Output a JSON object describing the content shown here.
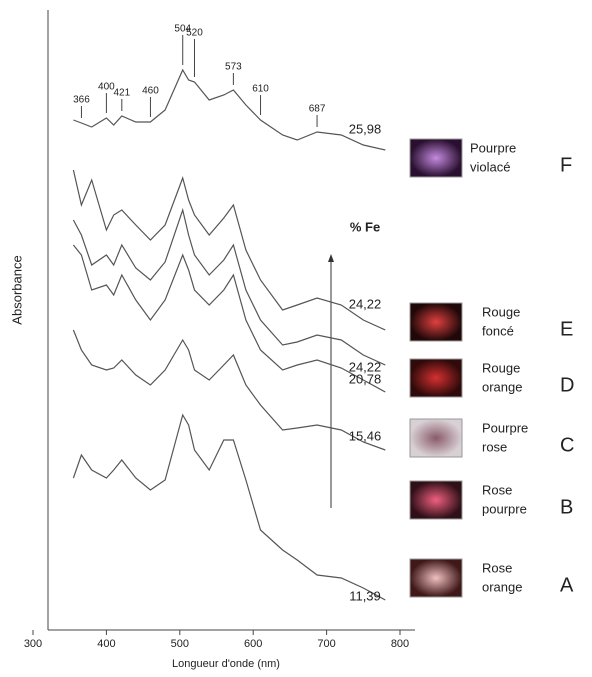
{
  "chart_data": {
    "type": "line",
    "x_label": "Longueur d'onde (nm)",
    "y_label": "Absorbance",
    "legend_title": "% Fe",
    "xlim": [
      300,
      800
    ],
    "xticks": [
      300,
      400,
      500,
      600,
      700,
      800
    ],
    "ylim": [
      0,
      620
    ],
    "peaks": [
      366,
      400,
      421,
      460,
      504,
      520,
      573,
      610,
      687
    ],
    "x": [
      355,
      366,
      380,
      400,
      410,
      421,
      440,
      460,
      480,
      504,
      512,
      520,
      540,
      560,
      573,
      590,
      610,
      640,
      660,
      687,
      720,
      750,
      780
    ],
    "series": [
      {
        "name": "25,98",
        "sample": [
          "Pourpre",
          "violacé"
        ],
        "letter": "F",
        "color": "#555555",
        "values": [
          510,
          507,
          503,
          512,
          505,
          514,
          508,
          508,
          520,
          560,
          550,
          548,
          530,
          535,
          540,
          525,
          510,
          495,
          490,
          498,
          495,
          485,
          480
        ]
      },
      {
        "name": "24,22",
        "sample": [
          "Rouge",
          "foncé"
        ],
        "letter": "E",
        "color": "#555555",
        "values": [
          460,
          425,
          450,
          400,
          415,
          420,
          405,
          390,
          405,
          452,
          430,
          415,
          395,
          412,
          425,
          380,
          350,
          320,
          325,
          332,
          325,
          310,
          300
        ]
      },
      {
        "name": "24,22",
        "sample": [
          "Rouge",
          "orange"
        ],
        "letter": "D",
        "color": "#555555",
        "values": [
          410,
          395,
          365,
          375,
          365,
          385,
          362,
          350,
          368,
          420,
          395,
          375,
          355,
          370,
          385,
          340,
          310,
          285,
          288,
          295,
          290,
          275,
          265
        ]
      },
      {
        "name": "20,78",
        "sample": [
          "Pourpre",
          "rose"
        ],
        "letter": "C",
        "color": "#555555",
        "values": [
          385,
          375,
          340,
          345,
          335,
          355,
          330,
          310,
          330,
          375,
          360,
          340,
          325,
          340,
          355,
          310,
          280,
          260,
          265,
          270,
          262,
          250,
          238
        ]
      },
      {
        "name": "15,46",
        "sample": [
          "Rose",
          "pourpre"
        ],
        "letter": "B",
        "color": "#555555",
        "values": [
          300,
          280,
          265,
          260,
          262,
          270,
          255,
          245,
          260,
          290,
          280,
          260,
          250,
          265,
          275,
          245,
          225,
          200,
          202,
          205,
          200,
          188,
          180
        ]
      },
      {
        "name": "11,39",
        "sample": [
          "Rose",
          "orange"
        ],
        "letter": "A",
        "color": "#555555",
        "values": [
          152,
          175,
          160,
          152,
          160,
          170,
          152,
          140,
          150,
          215,
          205,
          180,
          160,
          190,
          190,
          150,
          100,
          80,
          70,
          55,
          52,
          42,
          30
        ]
      }
    ]
  }
}
